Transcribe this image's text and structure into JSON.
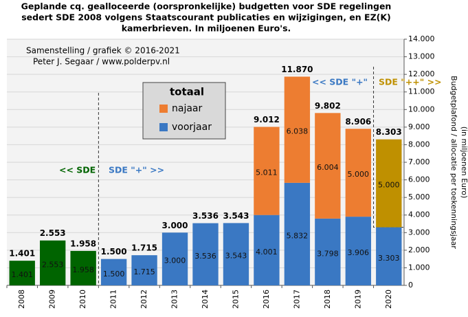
{
  "chart_data": {
    "type": "bar",
    "title": [
      "Geplande cq. gealloceerde (oorspronkelijke)  budgetten voor SDE regelingen",
      "sedert SDE 2008 volgens Staatscourant publicaties en wijzigingen,  en EZ(K)",
      "kamerbrieven. In miljoenen Euro's."
    ],
    "credits": [
      "Samenstelling  / grafiek  © 2016-2021",
      "Peter J. Segaar / www.polderpv.nl"
    ],
    "y_label": [
      "Budgetplafond / allocatie per toekenningsjaar",
      "(in miljoenen Euro)"
    ],
    "legend_title": "totaal",
    "categories": [
      "2008",
      "2009",
      "2010",
      "2011",
      "2012",
      "2013",
      "2014",
      "2015",
      "2016",
      "2017",
      "2018",
      "2019",
      "2020"
    ],
    "series": [
      {
        "name": "voorjaar",
        "color": "#3a78c3",
        "colors": [
          "#006400",
          "#006400",
          "#006400",
          "#3a78c3",
          "#3a78c3",
          "#3a78c3",
          "#3a78c3",
          "#3a78c3",
          "#3a78c3",
          "#3a78c3",
          "#3a78c3",
          "#3a78c3",
          "#3a78c3"
        ],
        "values": [
          1401,
          2553,
          1958,
          1500,
          1715,
          3000,
          3536,
          3543,
          4001,
          5832,
          3798,
          3906,
          3303
        ],
        "value_labels": [
          "1.401",
          "2.553",
          "1.958",
          "1.500",
          "1.715",
          "3.000",
          "3.536",
          "3.543",
          "4.001",
          "5.832",
          "3.798",
          "3.906",
          "3.303"
        ]
      },
      {
        "name": "najaar",
        "color": "#ed7d31",
        "colors": [
          "#ed7d31",
          "#ed7d31",
          "#ed7d31",
          "#ed7d31",
          "#ed7d31",
          "#ed7d31",
          "#ed7d31",
          "#ed7d31",
          "#ed7d31",
          "#ed7d31",
          "#ed7d31",
          "#ed7d31",
          "#bf9000"
        ],
        "values": [
          null,
          null,
          null,
          null,
          null,
          null,
          null,
          null,
          5011,
          6038,
          6004,
          5000,
          5000
        ],
        "value_labels": [
          null,
          null,
          null,
          null,
          null,
          null,
          null,
          null,
          "5.011",
          "6.038",
          "6.004",
          "5.000",
          "5.000"
        ]
      }
    ],
    "totals": {
      "values": [
        1401,
        2553,
        1958,
        1500,
        1715,
        3000,
        3536,
        3543,
        9012,
        11870,
        9802,
        8906,
        8303
      ],
      "value_labels": [
        "1.401",
        "2.553",
        "1.958",
        "1.500",
        "1.715",
        "3.000",
        "3.536",
        "3.543",
        "9.012",
        "11.870",
        "9.802",
        "8.906",
        "8.303"
      ]
    },
    "annotations": [
      {
        "text": "<< SDE",
        "color": "#006400"
      },
      {
        "text": "SDE \"+\" >>",
        "color": "#3a78c3"
      },
      {
        "text": "<< SDE \"+\"",
        "color": "#3a78c3"
      },
      {
        "text": "SDE \"++\" >>",
        "color": "#bf9000"
      }
    ],
    "ylim": [
      0,
      14000
    ],
    "yticks": [
      0,
      {
        "value": 1000,
        "label": "1.000"
      },
      {
        "value": 2000,
        "label": "2.000"
      },
      {
        "value": 3000,
        "label": "3.000"
      },
      {
        "value": 4000,
        "label": "4.000"
      },
      {
        "value": 5000,
        "label": "5.000"
      },
      {
        "value": 6000,
        "label": "6.000"
      },
      {
        "value": 7000,
        "label": "7.000"
      },
      {
        "value": 8000,
        "label": "8.000"
      },
      {
        "value": 9000,
        "label": "9.000"
      },
      {
        "value": 10000,
        "label": "10.000"
      },
      {
        "value": 11000,
        "label": "11.000"
      },
      {
        "value": 12000,
        "label": "12.000"
      },
      {
        "value": 13000,
        "label": "13.000"
      },
      {
        "value": 14000,
        "label": "14.000"
      }
    ],
    "grid": true
  }
}
